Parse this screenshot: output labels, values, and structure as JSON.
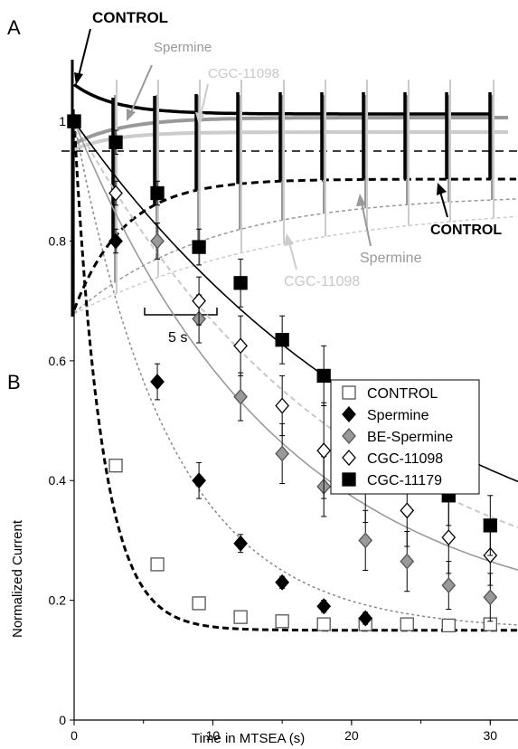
{
  "panel_a": {
    "letter": "A",
    "scale_bar_label": "5 s",
    "labels": {
      "control_top": "CONTROL",
      "spermine_top": "Spermine",
      "cgc_top": "CGC-11098",
      "control_bottom": "CONTROL",
      "spermine_bottom": "Spermine",
      "cgc_bottom": "CGC-11098"
    },
    "colors": {
      "control": "#000000",
      "spermine": "#999999",
      "cgc": "#cccccc"
    }
  },
  "panel_b": {
    "letter": "B"
  },
  "chart_data": {
    "type": "scatter",
    "xlabel": "Time in MTSEA (s)",
    "ylabel": "Normalized Current",
    "xlim": [
      0,
      32
    ],
    "ylim": [
      0,
      1.05
    ],
    "xticks": [
      "0",
      "10",
      "20",
      "30"
    ],
    "yticks": [
      "0",
      "0.2",
      "0.4",
      "0.6",
      "0.8",
      "1"
    ],
    "legend_position": "top-right",
    "series": [
      {
        "name": "CONTROL",
        "marker": "square-open",
        "fill": "#ffffff",
        "stroke": "#555555",
        "x": [
          0,
          3,
          6,
          9,
          12,
          15,
          18,
          21,
          24,
          27,
          30
        ],
        "y": [
          1.0,
          0.425,
          0.26,
          0.195,
          0.172,
          0.165,
          0.16,
          0.16,
          0.16,
          0.158,
          0.16
        ],
        "err": [
          0,
          0.01,
          0.01,
          0.01,
          0.01,
          0.01,
          0.01,
          0.01,
          0.01,
          0.01,
          0.01
        ],
        "fit": {
          "style": "heavy-dash",
          "color": "#000000",
          "plateau": 0.15,
          "tau": 2.0
        }
      },
      {
        "name": "Spermine",
        "marker": "diamond",
        "fill": "#000000",
        "stroke": "#000000",
        "x": [
          0,
          3,
          6,
          9,
          12,
          15,
          18,
          21
        ],
        "y": [
          1.0,
          0.8,
          0.565,
          0.4,
          0.295,
          0.23,
          0.19,
          0.17
        ],
        "err": [
          0,
          0.02,
          0.03,
          0.03,
          0.015,
          0.01,
          0.01,
          0.01
        ],
        "fit": {
          "style": "dotted",
          "color": "#888888",
          "plateau": 0.15,
          "tau": 7.0
        }
      },
      {
        "name": "BE-Spermine",
        "marker": "diamond",
        "fill": "#999999",
        "stroke": "#555555",
        "x": [
          0,
          6,
          9,
          12,
          15,
          18,
          21,
          24,
          27,
          30
        ],
        "y": [
          1.0,
          0.8,
          0.67,
          0.54,
          0.445,
          0.39,
          0.3,
          0.265,
          0.225,
          0.205
        ],
        "err": [
          0,
          0.03,
          0.04,
          0.04,
          0.05,
          0.05,
          0.05,
          0.05,
          0.04,
          0.04
        ],
        "fit": {
          "style": "solid",
          "color": "#9a9a9a",
          "plateau": 0.15,
          "tau": 15.0
        }
      },
      {
        "name": "CGC-11098",
        "marker": "diamond-open",
        "fill": "#ffffff",
        "stroke": "#000000",
        "x": [
          0,
          3,
          9,
          12,
          15,
          18,
          21,
          24,
          27,
          30
        ],
        "y": [
          1.0,
          0.88,
          0.7,
          0.625,
          0.525,
          0.45,
          0.4,
          0.35,
          0.305,
          0.275
        ],
        "err": [
          0,
          0.02,
          0.04,
          0.05,
          0.05,
          0.08,
          0.07,
          0.06,
          0.06,
          0.05
        ],
        "fit": {
          "style": "dashed",
          "color": "#c8c8c8",
          "plateau": 0.15,
          "tau": 20.0
        }
      },
      {
        "name": "CGC-11179",
        "marker": "square",
        "fill": "#000000",
        "stroke": "#000000",
        "x": [
          0,
          3,
          6,
          9,
          12,
          15,
          18,
          21,
          24,
          27,
          30
        ],
        "y": [
          1.0,
          0.965,
          0.88,
          0.79,
          0.73,
          0.635,
          0.575,
          0.505,
          0.445,
          0.375,
          0.325
        ],
        "err": [
          0,
          0.02,
          0.02,
          0.03,
          0.04,
          0.04,
          0.05,
          0.05,
          0.05,
          0.05,
          0.05
        ],
        "fit": {
          "style": "solid",
          "color": "#000000",
          "plateau": 0.15,
          "tau": 26.0
        }
      }
    ]
  }
}
